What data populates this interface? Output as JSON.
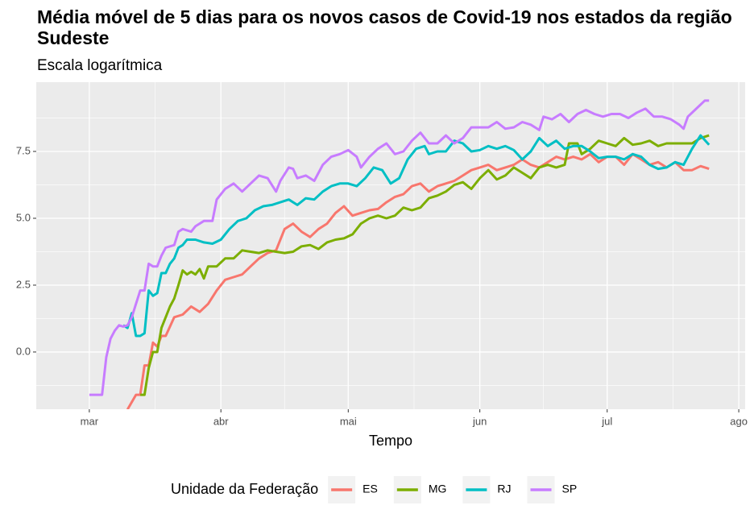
{
  "chart_data": {
    "type": "line",
    "title": "Média móvel de 5 dias para os novos casos de Covid-19 nos estados da região Sudeste",
    "subtitle": "Escala logarítmica",
    "x_label": "Tempo",
    "legend_title": "Unidade da Federação",
    "legend_position": "bottom",
    "grid": true,
    "xlim": [
      -12.5,
      154.5
    ],
    "ylim": [
      -2.14,
      10.09
    ],
    "xticks": [
      {
        "value": 0,
        "label": "mar"
      },
      {
        "value": 31,
        "label": "abr"
      },
      {
        "value": 61,
        "label": "mai"
      },
      {
        "value": 92,
        "label": "jun"
      },
      {
        "value": 122,
        "label": "jul"
      },
      {
        "value": 153,
        "label": "ago"
      }
    ],
    "yticks": [
      {
        "value": 0,
        "label": "0.0"
      },
      2.5,
      {
        "value": 5,
        "label": "5.0"
      },
      7.5
    ],
    "series": [
      {
        "name": "ES",
        "color": "#F8766D",
        "x": [
          9,
          11,
          12,
          13,
          14,
          15,
          16,
          17,
          18,
          20,
          22,
          24,
          26,
          28,
          30,
          32,
          34,
          36,
          38,
          40,
          42,
          44,
          46,
          48,
          50,
          52,
          54,
          56,
          58,
          60,
          62,
          64,
          66,
          68,
          70,
          72,
          74,
          76,
          78,
          80,
          82,
          84,
          86,
          88,
          90,
          92,
          94,
          96,
          98,
          100,
          102,
          104,
          106,
          108,
          110,
          112,
          114,
          116,
          118,
          120,
          122,
          124,
          126,
          128,
          130,
          132,
          134,
          136,
          138,
          140,
          142,
          144,
          146
        ],
        "values": [
          -2.15,
          -1.6,
          -1.6,
          -0.5,
          -0.5,
          0.35,
          0.2,
          0.6,
          0.6,
          1.3,
          1.4,
          1.7,
          1.5,
          1.8,
          2.3,
          2.7,
          2.8,
          2.9,
          3.2,
          3.5,
          3.7,
          3.8,
          4.6,
          4.8,
          4.5,
          4.3,
          4.6,
          4.8,
          5.2,
          5.45,
          5.1,
          5.2,
          5.3,
          5.35,
          5.6,
          5.8,
          5.9,
          6.2,
          6.3,
          6.0,
          6.2,
          6.3,
          6.4,
          6.6,
          6.8,
          6.9,
          7.0,
          6.8,
          6.9,
          7.0,
          7.2,
          7.0,
          6.9,
          7.1,
          7.3,
          7.2,
          7.3,
          7.2,
          7.4,
          7.1,
          7.3,
          7.3,
          7.0,
          7.4,
          7.2,
          7.0,
          7.1,
          6.9,
          7.1,
          6.8,
          6.8,
          6.95,
          6.85
        ]
      },
      {
        "name": "MG",
        "color": "#7CAE00",
        "x": [
          12,
          13,
          14,
          15,
          16,
          17,
          18,
          19,
          20,
          21,
          22,
          23,
          24,
          25,
          26,
          27,
          28,
          30,
          32,
          34,
          36,
          38,
          40,
          42,
          44,
          46,
          48,
          50,
          52,
          54,
          56,
          58,
          60,
          62,
          64,
          66,
          68,
          70,
          72,
          74,
          76,
          78,
          80,
          82,
          84,
          86,
          88,
          90,
          92,
          94,
          96,
          98,
          100,
          102,
          104,
          106,
          108,
          110,
          112,
          113,
          115,
          116,
          118,
          120,
          122,
          124,
          126,
          128,
          130,
          132,
          134,
          136,
          138,
          140,
          142,
          144,
          146
        ],
        "values": [
          -1.6,
          -1.6,
          -0.6,
          0.0,
          0.0,
          0.9,
          1.3,
          1.7,
          2.0,
          2.5,
          3.05,
          2.9,
          3.0,
          2.9,
          3.1,
          2.75,
          3.2,
          3.2,
          3.5,
          3.5,
          3.8,
          3.75,
          3.7,
          3.8,
          3.75,
          3.7,
          3.75,
          3.95,
          4.0,
          3.85,
          4.1,
          4.2,
          4.25,
          4.4,
          4.8,
          5.0,
          5.1,
          5.0,
          5.1,
          5.4,
          5.3,
          5.4,
          5.75,
          5.85,
          6.0,
          6.25,
          6.35,
          6.1,
          6.5,
          6.8,
          6.45,
          6.6,
          6.9,
          6.7,
          6.5,
          6.9,
          7.0,
          6.9,
          7.0,
          7.8,
          7.8,
          7.4,
          7.6,
          7.9,
          7.8,
          7.7,
          8.0,
          7.75,
          7.8,
          7.9,
          7.7,
          7.8,
          7.8,
          7.8,
          7.8,
          8.0,
          8.1
        ]
      },
      {
        "name": "RJ",
        "color": "#00BFC4",
        "x": [
          8,
          9,
          10,
          11,
          12,
          13,
          14,
          15,
          16,
          17,
          18,
          19,
          20,
          21,
          22,
          23,
          25,
          27,
          29,
          31,
          33,
          35,
          37,
          39,
          41,
          43,
          45,
          47,
          49,
          51,
          53,
          55,
          57,
          59,
          61,
          63,
          65,
          67,
          69,
          71,
          73,
          75,
          77,
          79,
          80,
          82,
          84,
          86,
          88,
          90,
          92,
          94,
          96,
          98,
          100,
          102,
          104,
          106,
          108,
          110,
          112,
          114,
          116,
          118,
          120,
          122,
          124,
          126,
          128,
          130,
          132,
          134,
          136,
          138,
          140,
          142,
          144,
          146
        ],
        "values": [
          1.0,
          0.9,
          1.45,
          0.6,
          0.6,
          0.7,
          2.3,
          2.1,
          2.2,
          2.95,
          2.95,
          3.3,
          3.5,
          3.9,
          4.0,
          4.2,
          4.2,
          4.1,
          4.05,
          4.2,
          4.6,
          4.9,
          5.0,
          5.3,
          5.45,
          5.5,
          5.6,
          5.7,
          5.5,
          5.75,
          5.7,
          6.0,
          6.2,
          6.3,
          6.3,
          6.2,
          6.5,
          6.9,
          6.8,
          6.3,
          6.5,
          7.2,
          7.6,
          7.7,
          7.4,
          7.5,
          7.5,
          7.9,
          7.8,
          7.5,
          7.55,
          7.7,
          7.6,
          7.7,
          7.55,
          7.2,
          7.5,
          8.0,
          7.7,
          7.9,
          7.6,
          7.7,
          7.7,
          7.5,
          7.25,
          7.3,
          7.3,
          7.2,
          7.4,
          7.3,
          7.0,
          6.85,
          6.9,
          7.1,
          7.0,
          7.6,
          8.1,
          7.75
        ]
      },
      {
        "name": "SP",
        "color": "#C77CFF",
        "x": [
          0,
          3,
          4,
          5,
          6,
          7,
          8,
          9,
          10,
          11,
          12,
          13,
          14,
          15,
          16,
          17,
          18,
          20,
          21,
          22,
          24,
          25,
          27,
          29,
          30,
          32,
          34,
          36,
          38,
          40,
          42,
          44,
          45,
          47,
          48,
          49,
          51,
          53,
          55,
          57,
          59,
          61,
          63,
          64,
          66,
          68,
          70,
          72,
          74,
          76,
          78,
          80,
          82,
          84,
          86,
          88,
          90,
          92,
          94,
          96,
          98,
          100,
          102,
          104,
          106,
          107,
          109,
          111,
          113,
          115,
          117,
          119,
          121,
          123,
          125,
          127,
          129,
          131,
          133,
          135,
          137,
          139,
          140,
          141,
          143,
          145,
          146
        ],
        "values": [
          -1.6,
          -1.6,
          -0.2,
          0.5,
          0.8,
          1.0,
          0.95,
          1.0,
          1.3,
          1.8,
          2.3,
          2.3,
          3.3,
          3.2,
          3.2,
          3.6,
          3.9,
          4.0,
          4.5,
          4.6,
          4.5,
          4.7,
          4.9,
          4.9,
          5.7,
          6.1,
          6.3,
          6.0,
          6.3,
          6.6,
          6.5,
          6.0,
          6.4,
          6.9,
          6.85,
          6.5,
          6.6,
          6.4,
          7.0,
          7.3,
          7.4,
          7.55,
          7.3,
          6.9,
          7.3,
          7.6,
          7.8,
          7.4,
          7.5,
          7.9,
          8.2,
          7.8,
          7.8,
          8.1,
          7.8,
          8.0,
          8.4,
          8.4,
          8.4,
          8.6,
          8.35,
          8.4,
          8.6,
          8.5,
          8.3,
          8.8,
          8.7,
          8.9,
          8.6,
          8.9,
          9.05,
          8.9,
          8.8,
          8.9,
          8.9,
          8.75,
          8.95,
          9.1,
          8.8,
          8.8,
          8.7,
          8.5,
          8.35,
          8.8,
          9.1,
          9.4,
          9.4
        ]
      }
    ]
  }
}
